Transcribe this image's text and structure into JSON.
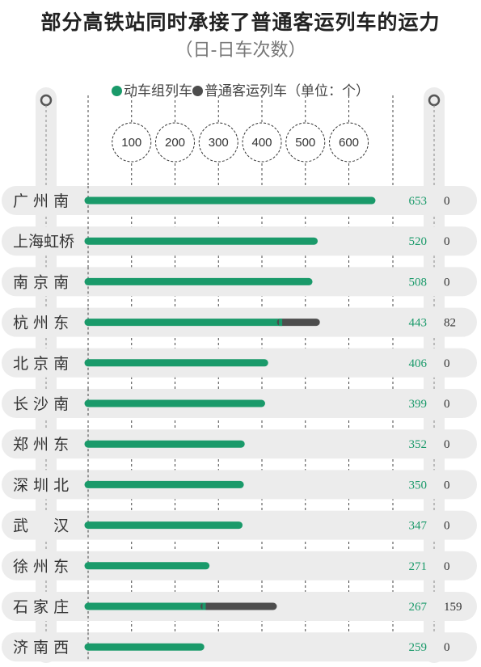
{
  "chart_data": {
    "type": "bar",
    "title": "部分高铁站同时承接了普通客运列车的运力",
    "subtitle": "（日-日车次数）",
    "legend_unit": "（单位：个）",
    "series": [
      {
        "name": "动车组列车",
        "color": "#1a9a6a",
        "values": [
          653,
          520,
          508,
          443,
          406,
          399,
          352,
          350,
          347,
          271,
          267,
          259
        ]
      },
      {
        "name": "普通客运列车",
        "color": "#4d4d4d",
        "values": [
          0,
          0,
          0,
          82,
          0,
          0,
          0,
          0,
          0,
          0,
          159,
          0
        ]
      }
    ],
    "categories": [
      "广 州 南",
      "上海虹桥",
      "南 京 南",
      "杭 州 东",
      "北 京 南",
      "长 沙 南",
      "郑 州 东",
      "深 圳 北",
      "武 　 汉",
      "徐 州 东",
      "石 家 庄",
      "济 南 西"
    ],
    "ticks": [
      "100",
      "200",
      "300",
      "400",
      "500",
      "600"
    ],
    "stacked": true,
    "orientation": "horizontal"
  }
}
